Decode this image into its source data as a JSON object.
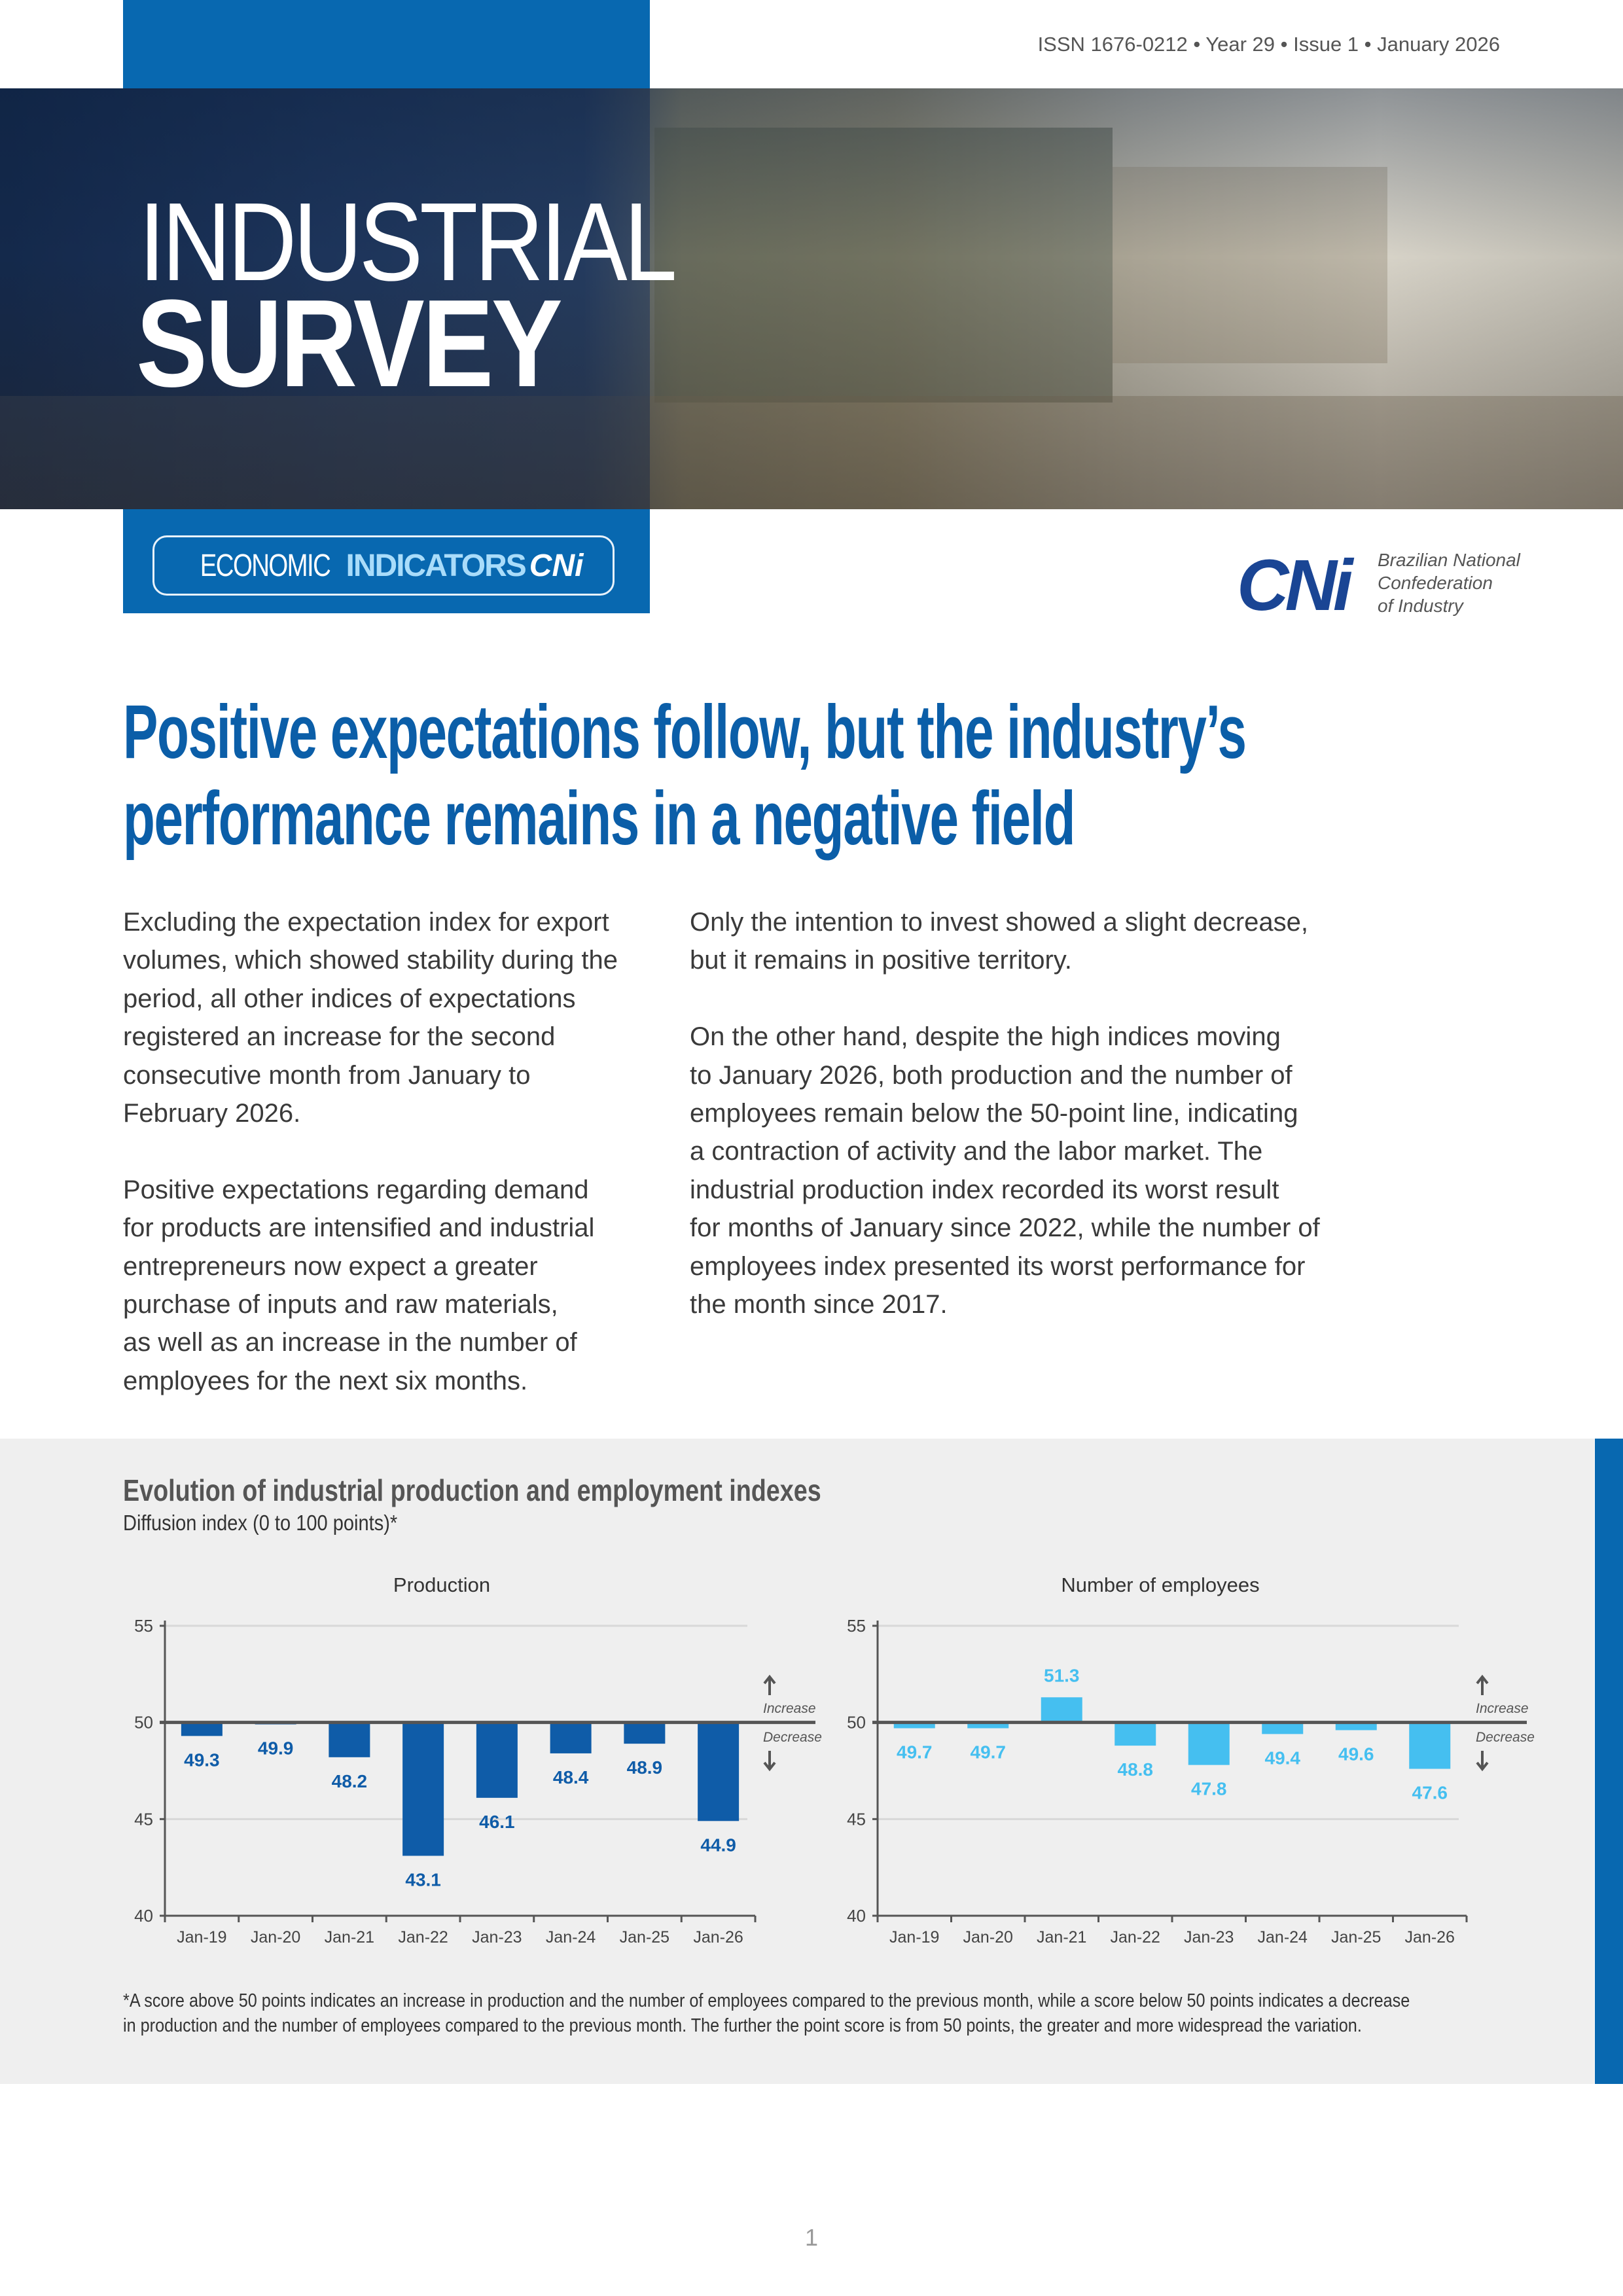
{
  "header": {
    "issn": "ISSN 1676-0212 • Year 29 • Issue 1 • January 2026",
    "title_line1": "INDUSTRIAL",
    "title_line2": "SURVEY",
    "series_part1": "ECONOMIC",
    "series_part2": "INDICATORS",
    "series_part3": "CNi",
    "logo_mark": "CNi",
    "logo_text": [
      "Brazilian National",
      "Confederation",
      "of Industry"
    ]
  },
  "headline": [
    "Positive expectations follow, but the industry’s",
    "performance remains in a negative field"
  ],
  "body": {
    "left": [
      [
        "Excluding the expectation index for export",
        "volumes, which showed stability during the",
        "period, all other indices of expectations",
        "registered an increase for the second",
        "consecutive month from January to",
        "February 2026."
      ],
      [
        "Positive expectations regarding demand",
        "for products are intensified and industrial",
        "entrepreneurs now expect a greater",
        "purchase of inputs and raw materials,",
        "as well as an increase in the number of",
        "employees for the next six months."
      ]
    ],
    "right": [
      [
        "Only the intention to invest showed a slight decrease,",
        "but it remains in positive territory."
      ],
      [
        "On the other hand, despite the high indices moving",
        "to January 2026, both production and the number of",
        "employees remain below the 50-point line, indicating",
        "a contraction of activity and the labor market. The",
        "industrial production index recorded its worst result",
        "for months of January since 2022, while the number of",
        "employees index presented its worst performance for",
        "the month since 2017."
      ]
    ]
  },
  "chart_section": {
    "title": "Evolution of industrial production and employment indexes",
    "subtitle": "Diffusion index (0 to 100 points)*",
    "footnote": [
      "*A score above 50 points indicates an increase in production and the number of employees compared to the previous month, while a score below 50 points indicates a decrease",
      "in production and the number of employees compared to the previous month. The further the point score is from 50 points, the greater and more widespread the variation."
    ]
  },
  "chart_data": [
    {
      "type": "bar",
      "title": "Production",
      "categories": [
        "Jan-19",
        "Jan-20",
        "Jan-21",
        "Jan-22",
        "Jan-23",
        "Jan-24",
        "Jan-25",
        "Jan-26"
      ],
      "values": [
        49.3,
        49.9,
        48.2,
        43.1,
        46.1,
        48.4,
        48.9,
        44.9
      ],
      "ylim": [
        40,
        55
      ],
      "yticks": [
        40,
        45,
        50,
        55
      ],
      "baseline": 50,
      "annotations": {
        "up": "Increase",
        "down": "Decrease"
      },
      "color": "#0f5ca8",
      "grid": true
    },
    {
      "type": "bar",
      "title": "Number of employees",
      "categories": [
        "Jan-19",
        "Jan-20",
        "Jan-21",
        "Jan-22",
        "Jan-23",
        "Jan-24",
        "Jan-25",
        "Jan-26"
      ],
      "values": [
        49.7,
        49.7,
        51.3,
        48.8,
        47.8,
        49.4,
        49.6,
        47.6
      ],
      "ylim": [
        40,
        55
      ],
      "yticks": [
        40,
        45,
        50,
        55
      ],
      "baseline": 50,
      "annotations": {
        "up": "Increase",
        "down": "Decrease"
      },
      "color": "#45bff0",
      "grid": true
    }
  ],
  "page_number": "1"
}
